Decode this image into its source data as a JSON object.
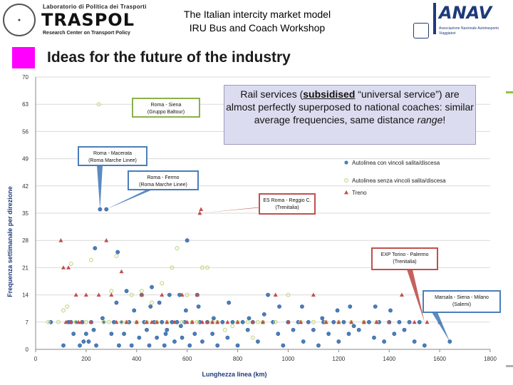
{
  "header": {
    "left_logo": {
      "line1": "Laboratorio di Politica dei Trasporti",
      "name": "TRASPOL",
      "line2": "Research Center on Transport Policy"
    },
    "title": "The Italian intercity market model",
    "subtitle": "IRU Bus and Coach Workshop",
    "right_logo": {
      "name": "ANAV",
      "sub": "Associazione Nazionale Autotrasporto Viaggiatori"
    }
  },
  "section_title": "Ideas for the future of the industry",
  "note": {
    "part1": "Rail services (",
    "bold_underlined": "subsidised",
    "part2": " “universal service”) are almost perfectly superposed to national coaches: similar average frequencies, same distance ",
    "italic": "range",
    "part3": "!"
  },
  "colors": {
    "blue": "#4a7ebb",
    "green": "#c8d88a",
    "red": "#c0504d",
    "accent": "#ff00ff",
    "grid": "#d9d9d9"
  },
  "chart_data": {
    "type": "scatter",
    "xlabel": "Lunghezza linea (km)",
    "ylabel": "Frequenza settimanale per direzione",
    "xlim": [
      0,
      1800
    ],
    "ylim": [
      0,
      70
    ],
    "xticks": [
      "0",
      "200",
      "400",
      "600",
      "800",
      "1000",
      "1200",
      "1400",
      "1600",
      "1800"
    ],
    "yticks": [
      "0",
      "7",
      "14",
      "21",
      "28",
      "35",
      "42",
      "49",
      "56",
      "63",
      "70"
    ],
    "grid": true,
    "legend_position": "right",
    "legend": [
      {
        "label": "Autolinea con vincoli salita/discesa",
        "marker": "circle",
        "color": "#4a7ebb"
      },
      {
        "label": "Autolinea senza vincoli salita/discesa",
        "marker": "ring",
        "color": "#c8d88a"
      },
      {
        "label": "Treno",
        "marker": "triangle",
        "color": "#c0504d"
      }
    ],
    "series": [
      {
        "name": "Autolinea con vincoli salita/discesa",
        "points": [
          [
            110,
            1
          ],
          [
            130,
            7
          ],
          [
            150,
            4
          ],
          [
            160,
            7
          ],
          [
            175,
            1
          ],
          [
            185,
            7
          ],
          [
            200,
            4
          ],
          [
            210,
            2
          ],
          [
            220,
            7
          ],
          [
            230,
            5
          ],
          [
            240,
            1
          ],
          [
            255,
            36
          ],
          [
            270,
            7
          ],
          [
            280,
            36
          ],
          [
            300,
            4
          ],
          [
            310,
            7
          ],
          [
            320,
            12
          ],
          [
            330,
            1
          ],
          [
            340,
            7
          ],
          [
            350,
            4
          ],
          [
            360,
            15
          ],
          [
            370,
            7
          ],
          [
            380,
            1
          ],
          [
            400,
            7
          ],
          [
            410,
            3
          ],
          [
            420,
            14
          ],
          [
            430,
            7
          ],
          [
            440,
            5
          ],
          [
            450,
            1
          ],
          [
            460,
            16
          ],
          [
            470,
            7
          ],
          [
            480,
            3
          ],
          [
            490,
            12
          ],
          [
            500,
            7
          ],
          [
            510,
            1
          ],
          [
            520,
            5
          ],
          [
            530,
            14
          ],
          [
            540,
            7
          ],
          [
            550,
            2
          ],
          [
            560,
            7
          ],
          [
            570,
            14
          ],
          [
            580,
            3
          ],
          [
            590,
            7
          ],
          [
            600,
            28
          ],
          [
            610,
            1
          ],
          [
            620,
            7
          ],
          [
            630,
            4
          ],
          [
            640,
            14
          ],
          [
            650,
            7
          ],
          [
            660,
            2
          ],
          [
            680,
            7
          ],
          [
            700,
            4
          ],
          [
            720,
            1
          ],
          [
            740,
            7
          ],
          [
            760,
            3
          ],
          [
            780,
            7
          ],
          [
            800,
            1
          ],
          [
            820,
            7
          ],
          [
            840,
            5
          ],
          [
            860,
            7
          ],
          [
            880,
            2
          ],
          [
            900,
            7
          ],
          [
            920,
            14
          ],
          [
            940,
            7
          ],
          [
            960,
            4
          ],
          [
            980,
            1
          ],
          [
            1000,
            7
          ],
          [
            1020,
            5
          ],
          [
            1040,
            7
          ],
          [
            1060,
            2
          ],
          [
            1080,
            7
          ],
          [
            1100,
            5
          ],
          [
            1120,
            1
          ],
          [
            1140,
            7
          ],
          [
            1160,
            4
          ],
          [
            1180,
            7
          ],
          [
            1200,
            2
          ],
          [
            1220,
            7
          ],
          [
            1240,
            4
          ],
          [
            1260,
            6
          ],
          [
            1280,
            5
          ],
          [
            1300,
            7
          ],
          [
            1320,
            7
          ],
          [
            1340,
            3
          ],
          [
            1360,
            7
          ],
          [
            1380,
            2
          ],
          [
            1400,
            7
          ],
          [
            1420,
            4
          ],
          [
            1440,
            7
          ],
          [
            1460,
            5
          ],
          [
            1480,
            7
          ],
          [
            1500,
            2
          ],
          [
            1520,
            7
          ],
          [
            1540,
            1
          ],
          [
            1640,
            2
          ],
          [
            60,
            7
          ],
          [
            140,
            7
          ],
          [
            190,
            2
          ],
          [
            235,
            26
          ],
          [
            265,
            8
          ],
          [
            325,
            25
          ],
          [
            390,
            10
          ],
          [
            455,
            11
          ],
          [
            515,
            4
          ],
          [
            575,
            6
          ],
          [
            595,
            10
          ],
          [
            645,
            11
          ],
          [
            705,
            8
          ],
          [
            765,
            12
          ],
          [
            845,
            8
          ],
          [
            905,
            9
          ],
          [
            965,
            11
          ],
          [
            1055,
            11
          ],
          [
            1135,
            8
          ],
          [
            1195,
            10
          ],
          [
            1245,
            11
          ],
          [
            1345,
            11
          ],
          [
            1405,
            10
          ]
        ]
      },
      {
        "name": "Autolinea senza vincoli salita/discesa",
        "points": [
          [
            50,
            7
          ],
          [
            90,
            7
          ],
          [
            110,
            10
          ],
          [
            125,
            11
          ],
          [
            140,
            22
          ],
          [
            160,
            7
          ],
          [
            200,
            7
          ],
          [
            220,
            23
          ],
          [
            250,
            63
          ],
          [
            270,
            7
          ],
          [
            290,
            7
          ],
          [
            300,
            15
          ],
          [
            320,
            24
          ],
          [
            340,
            7
          ],
          [
            360,
            7
          ],
          [
            380,
            14
          ],
          [
            400,
            7
          ],
          [
            420,
            15
          ],
          [
            440,
            7
          ],
          [
            460,
            12
          ],
          [
            480,
            7
          ],
          [
            500,
            17
          ],
          [
            520,
            7
          ],
          [
            540,
            21
          ],
          [
            560,
            26
          ],
          [
            580,
            7
          ],
          [
            600,
            14
          ],
          [
            620,
            7
          ],
          [
            640,
            7
          ],
          [
            660,
            21
          ],
          [
            680,
            21
          ],
          [
            700,
            7
          ],
          [
            720,
            7
          ],
          [
            750,
            5
          ],
          [
            780,
            6
          ],
          [
            800,
            7
          ],
          [
            840,
            7
          ],
          [
            860,
            3
          ],
          [
            880,
            7
          ],
          [
            900,
            7
          ],
          [
            950,
            7
          ],
          [
            1000,
            14
          ],
          [
            1050,
            7
          ],
          [
            1100,
            7
          ],
          [
            1150,
            7
          ],
          [
            1200,
            7
          ],
          [
            1250,
            7
          ],
          [
            1300,
            7
          ],
          [
            1350,
            7
          ]
        ]
      },
      {
        "name": "Treno",
        "points": [
          [
            100,
            28
          ],
          [
            110,
            21
          ],
          [
            120,
            7
          ],
          [
            130,
            21
          ],
          [
            140,
            7
          ],
          [
            160,
            14
          ],
          [
            170,
            7
          ],
          [
            180,
            7
          ],
          [
            200,
            14
          ],
          [
            220,
            7
          ],
          [
            250,
            14
          ],
          [
            280,
            28
          ],
          [
            300,
            14
          ],
          [
            320,
            7
          ],
          [
            340,
            20
          ],
          [
            360,
            7
          ],
          [
            400,
            7
          ],
          [
            420,
            14
          ],
          [
            440,
            7
          ],
          [
            460,
            7
          ],
          [
            480,
            7
          ],
          [
            500,
            14
          ],
          [
            520,
            7
          ],
          [
            550,
            7
          ],
          [
            580,
            14
          ],
          [
            600,
            7
          ],
          [
            620,
            7
          ],
          [
            640,
            14
          ],
          [
            650,
            35
          ],
          [
            655,
            36
          ],
          [
            660,
            7
          ],
          [
            680,
            7
          ],
          [
            700,
            7
          ],
          [
            720,
            7
          ],
          [
            760,
            7
          ],
          [
            800,
            7
          ],
          [
            860,
            7
          ],
          [
            900,
            7
          ],
          [
            950,
            14
          ],
          [
            1000,
            7
          ],
          [
            1050,
            7
          ],
          [
            1100,
            14
          ],
          [
            1150,
            7
          ],
          [
            1200,
            7
          ],
          [
            1250,
            7
          ],
          [
            1300,
            7
          ],
          [
            1350,
            7
          ],
          [
            1400,
            7
          ],
          [
            1450,
            14
          ],
          [
            1500,
            7
          ],
          [
            1550,
            7
          ],
          [
            1600,
            7
          ]
        ]
      }
    ],
    "annotations": [
      {
        "text": "Roma - Siena (Gruppo Baltour)",
        "color": "#8cb04a",
        "point": [
          250,
          63
        ]
      },
      {
        "text": "Roma - Macerata (Roma Marche Linee)",
        "color": "#4a7ebb",
        "point": [
          255,
          36
        ]
      },
      {
        "text": "Roma - Fermo (Roma Marche Linee)",
        "color": "#4a7ebb",
        "point": [
          280,
          36
        ]
      },
      {
        "text": "ES Roma - Reggio C. (Trenitalia)",
        "color": "#c0504d",
        "point": [
          650,
          35
        ]
      },
      {
        "text": "EXP Torino - Palermo (Trenitalia)",
        "color": "#c0504d",
        "point": [
          1540,
          7
        ]
      },
      {
        "text": "Marsala - Siena - Milano (Salemi)",
        "color": "#4a7ebb",
        "point": [
          1640,
          2
        ]
      }
    ]
  }
}
